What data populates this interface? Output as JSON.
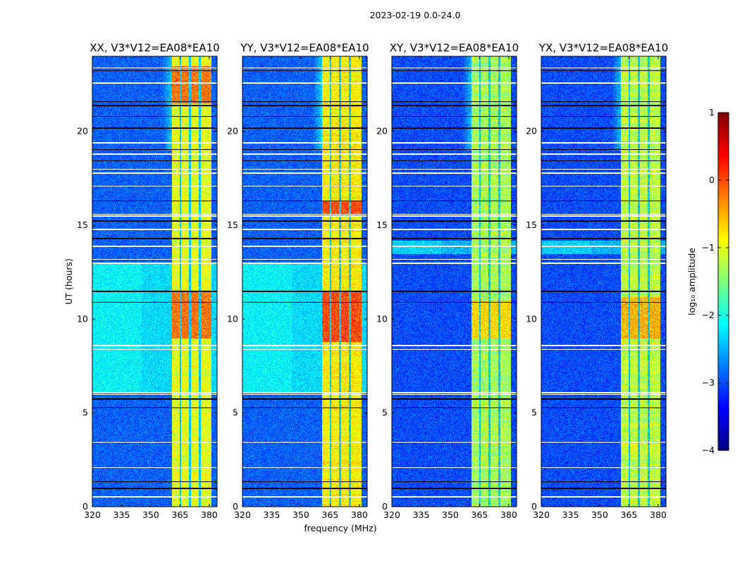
{
  "chart_data": {
    "type": "heatmap",
    "title": "2023-02-19 0.0-24.0",
    "xlabel": "frequency (MHz)",
    "ylabel": "UT (hours)",
    "xlim": [
      320,
      384
    ],
    "ylim": [
      0,
      24
    ],
    "xticks": [
      320,
      335,
      350,
      365,
      380
    ],
    "yticks": [
      0,
      5,
      10,
      15,
      20
    ],
    "colormap": "jet",
    "colorbar": {
      "label": "log₁₀ amplitude",
      "range": [
        -4,
        1
      ],
      "ticks": [
        1,
        0,
        -1,
        -2,
        -3,
        -4
      ]
    },
    "dark_channels_mhz": [
      365,
      370,
      375
    ],
    "flagged_rows_white_hours": [
      0.55,
      2.1,
      3.45,
      6.0,
      6.1,
      8.4,
      8.6,
      13.0,
      13.2,
      13.9,
      14.8,
      15.5,
      15.6,
      17.1,
      17.8,
      18.0,
      18.8,
      19.4,
      22.6,
      23.4
    ],
    "dark_rows_hours": [
      1.0,
      1.35,
      5.3,
      5.75,
      10.9,
      11.5,
      14.3,
      15.25,
      16.3,
      18.45,
      19.05,
      20.2,
      20.8,
      21.4,
      21.6,
      23.25
    ],
    "panels": [
      {
        "title": "XX, V3*V12=EA08*EA10",
        "background": -2.9,
        "band_mhz": [
          360.5,
          380.8
        ],
        "band_level": -1.0,
        "hot_hours": [
          [
            9,
            11.5
          ],
          [
            21.5,
            23.5
          ]
        ],
        "hot_level": -0.3,
        "enhanced_background_hours": [
          [
            6.1,
            13.0
          ]
        ],
        "enhanced_level": -2.3
      },
      {
        "title": "YY, V3*V12=EA08*EA10",
        "background": -2.9,
        "band_mhz": [
          360.5,
          380.8
        ],
        "band_level": -0.8,
        "hot_hours": [
          [
            8.8,
            11.5
          ],
          [
            15.5,
            16.3
          ]
        ],
        "hot_level": -0.1,
        "enhanced_background_hours": [
          [
            6.1,
            13.0
          ]
        ],
        "enhanced_level": -2.3
      },
      {
        "title": "XY, V3*V12=EA08*EA10",
        "background": -3.0,
        "band_mhz": [
          360.5,
          380.8
        ],
        "band_level": -1.3,
        "hot_hours": [
          [
            9,
            11
          ]
        ],
        "hot_level": -0.8,
        "enhanced_background_hours": [
          [
            13.5,
            14.2
          ]
        ],
        "enhanced_level": -2.5
      },
      {
        "title": "YX, V3*V12=EA08*EA10",
        "background": -3.0,
        "band_mhz": [
          360.5,
          380.8
        ],
        "band_level": -1.2,
        "hot_hours": [
          [
            9,
            11.2
          ]
        ],
        "hot_level": -0.6,
        "enhanced_background_hours": [
          [
            13.5,
            14.2
          ]
        ],
        "enhanced_level": -2.5
      }
    ]
  }
}
